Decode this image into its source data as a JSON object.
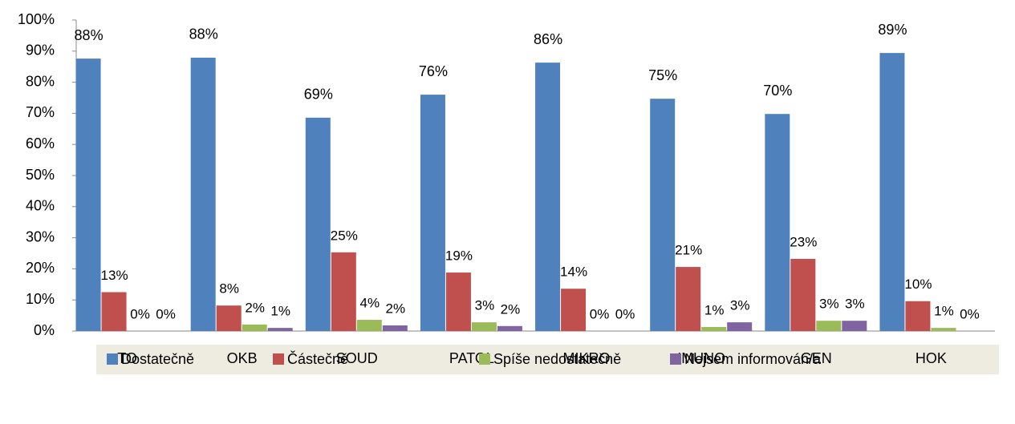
{
  "chart_data": {
    "type": "bar",
    "categories": [
      "TO",
      "OKB",
      "SOUD",
      "PATOL",
      "MIKRO",
      "IMUNO",
      "GEN",
      "HOK"
    ],
    "series": [
      {
        "name": "Dostatečně",
        "color": "#4f81bd",
        "values": [
          87.6,
          87.9,
          68.6,
          76.0,
          86.3,
          74.7,
          69.8,
          89.4
        ],
        "value_labels": [
          "88%",
          "88%",
          "69%",
          "76%",
          "86%",
          "75%",
          "70%",
          "89%"
        ]
      },
      {
        "name": "Částečně",
        "color": "#c0504d",
        "values": [
          12.5,
          8.2,
          25.3,
          18.8,
          13.6,
          20.6,
          23.2,
          9.6
        ],
        "value_labels": [
          "13%",
          "8%",
          "25%",
          "19%",
          "14%",
          "21%",
          "23%",
          "10%"
        ]
      },
      {
        "name": "Spíše nedostatečně",
        "color": "#9bbb59",
        "values": [
          0,
          2.1,
          3.6,
          2.8,
          0,
          1.3,
          3.3,
          1.0
        ],
        "value_labels": [
          "0%",
          "2%",
          "4%",
          "3%",
          "0%",
          "1%",
          "3%",
          "1%"
        ]
      },
      {
        "name": "Nejsem informován/a",
        "color": "#8064a2",
        "values": [
          0,
          1.0,
          1.8,
          1.6,
          0,
          2.8,
          3.3,
          0
        ],
        "value_labels": [
          "0%",
          "1%",
          "2%",
          "2%",
          "0%",
          "3%",
          "3%",
          "0%"
        ]
      }
    ],
    "ylim": [
      0,
      100
    ],
    "yticks": [
      {
        "value": 0,
        "label": "0%"
      },
      {
        "value": 10,
        "label": "10%"
      },
      {
        "value": 20,
        "label": "20%"
      },
      {
        "value": 30,
        "label": "30%"
      },
      {
        "value": 40,
        "label": "40%"
      },
      {
        "value": 50,
        "label": "50%"
      },
      {
        "value": 60,
        "label": "60%"
      },
      {
        "value": 70,
        "label": "70%"
      },
      {
        "value": 80,
        "label": "80%"
      },
      {
        "value": 90,
        "label": "90%"
      },
      {
        "value": 100,
        "label": "100%"
      }
    ],
    "legend": "bottom"
  }
}
